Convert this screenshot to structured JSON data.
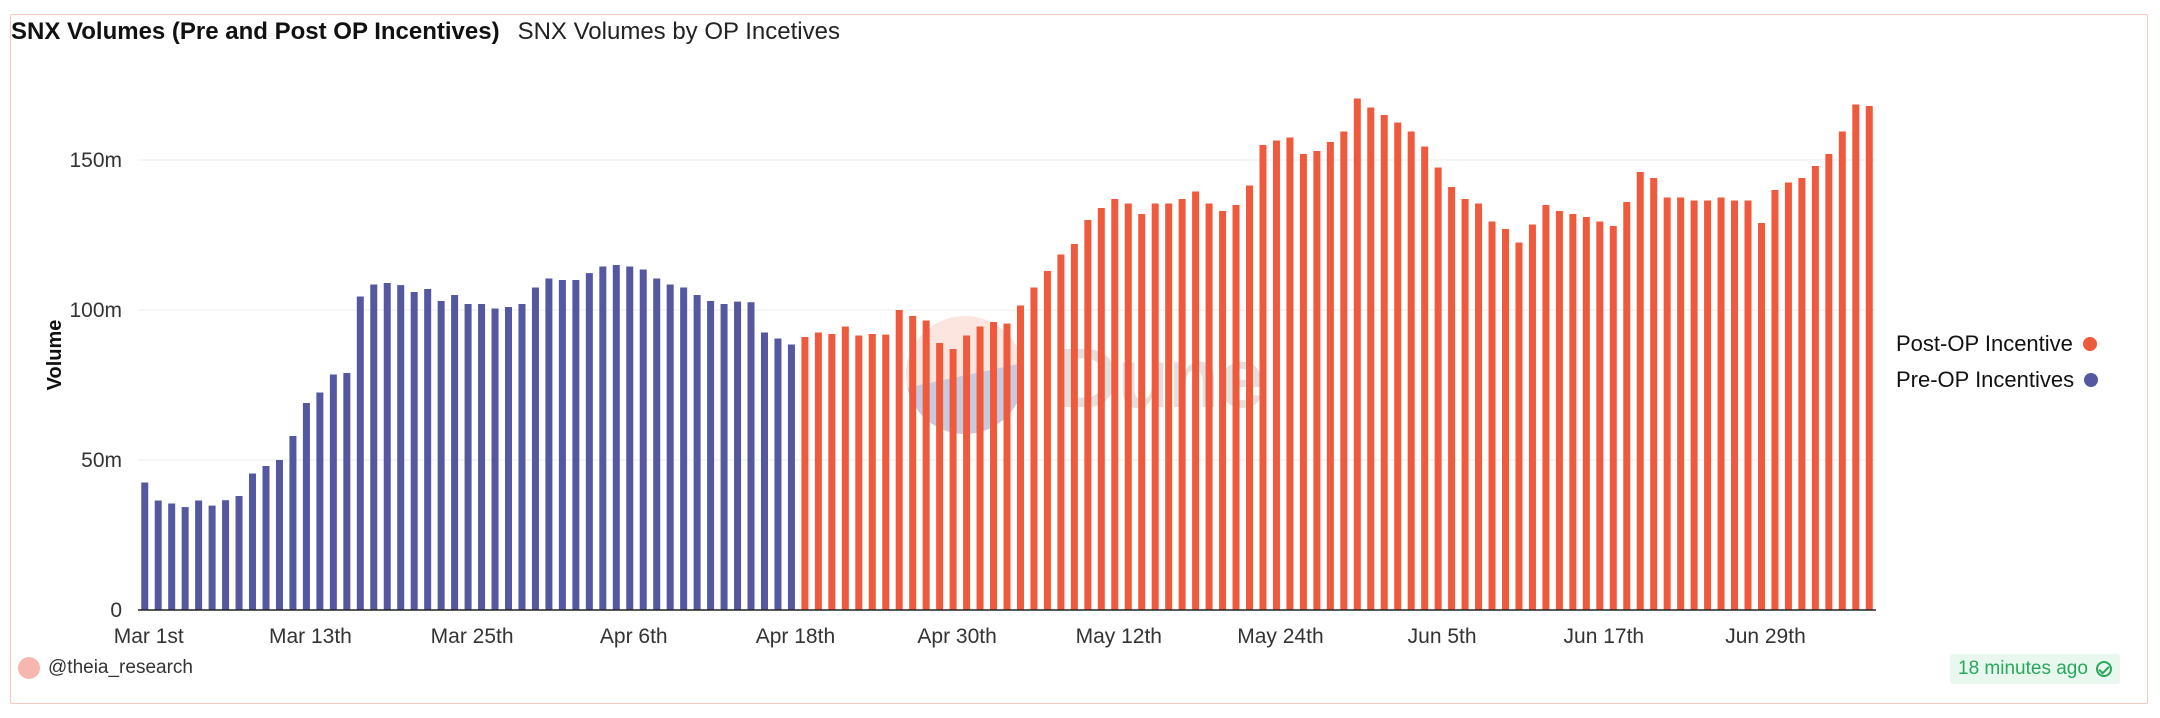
{
  "header": {
    "title": "SNX Volumes (Pre and Post OP Incentives)",
    "subtitle": "SNX Volumes by OP Incetives"
  },
  "legend": [
    {
      "label": "Post-OP Incentive",
      "color": "#f05a3c"
    },
    {
      "label": "Pre-OP Incentives",
      "color": "#5458a0"
    }
  ],
  "footer": {
    "author": "@theia_research",
    "updated": "18 minutes ago"
  },
  "watermark": "Dune",
  "chart_data": {
    "type": "bar",
    "title": "SNX Volumes (Pre and Post OP Incentives)",
    "ylabel": "Volume",
    "xlabel": "",
    "ylim": [
      0,
      170000000
    ],
    "y_ticks": [
      {
        "value": 0,
        "label": "0"
      },
      {
        "value": 50000000,
        "label": "50m"
      },
      {
        "value": 100000000,
        "label": "100m"
      },
      {
        "value": 150000000,
        "label": "150m"
      }
    ],
    "x_tick_labels": [
      {
        "index": 0,
        "label": "Mar 1st"
      },
      {
        "index": 12,
        "label": "Mar 13th"
      },
      {
        "index": 24,
        "label": "Mar 25th"
      },
      {
        "index": 36,
        "label": "Apr 6th"
      },
      {
        "index": 48,
        "label": "Apr 18th"
      },
      {
        "index": 60,
        "label": "Apr 30th"
      },
      {
        "index": 72,
        "label": "May 12th"
      },
      {
        "index": 84,
        "label": "May 24th"
      },
      {
        "index": 96,
        "label": "Jun 5th"
      },
      {
        "index": 108,
        "label": "Jun 17th"
      },
      {
        "index": 120,
        "label": "Jun 29th"
      }
    ],
    "grid": true,
    "legend_position": "right",
    "series": [
      {
        "name": "Pre-OP Incentives",
        "color": "#5458a0",
        "start_index": 0,
        "values": [
          42500000,
          36500000,
          35500000,
          34300000,
          36500000,
          34800000,
          36600000,
          38000000,
          45500000,
          48000000,
          50000000,
          58000000,
          69000000,
          72500000,
          78500000,
          79000000,
          104500000,
          108500000,
          109000000,
          108300000,
          106000000,
          107000000,
          103000000,
          105000000,
          102000000,
          102000000,
          100500000,
          101000000,
          102000000,
          107500000,
          110500000,
          110000000,
          110000000,
          112300000,
          114500000,
          115000000,
          114500000,
          113500000,
          110500000,
          108500000,
          107500000,
          105000000,
          103000000,
          102000000,
          102800000,
          102600000,
          92500000,
          90500000,
          88500000
        ]
      },
      {
        "name": "Post-OP Incentive",
        "color": "#f05a3c",
        "start_index": 49,
        "values": [
          91000000,
          92500000,
          92000000,
          94500000,
          91500000,
          92000000,
          91800000,
          100000000,
          98000000,
          96500000,
          89000000,
          87000000,
          91500000,
          94500000,
          96000000,
          95500000,
          101500000,
          107500000,
          113000000,
          118500000,
          122000000,
          130000000,
          134000000,
          137000000,
          135500000,
          132000000,
          135500000,
          135500000,
          137000000,
          139500000,
          135500000,
          133000000,
          135000000,
          141500000,
          155000000,
          156500000,
          157500000,
          152000000,
          153000000,
          156000000,
          159500000,
          170500000,
          167500000,
          165000000,
          162500000,
          159500000,
          154500000,
          147500000,
          141000000,
          137000000,
          135500000,
          129500000,
          127000000,
          122500000,
          128500000,
          135000000,
          133000000,
          132000000,
          131000000,
          129500000,
          128000000,
          136000000,
          146000000,
          144000000,
          137500000,
          137500000,
          136500000,
          136500000,
          137500000,
          136500000,
          136500000,
          129000000,
          140000000,
          142500000,
          144000000,
          148000000,
          152000000,
          159500000,
          168500000,
          168000000
        ]
      }
    ]
  }
}
